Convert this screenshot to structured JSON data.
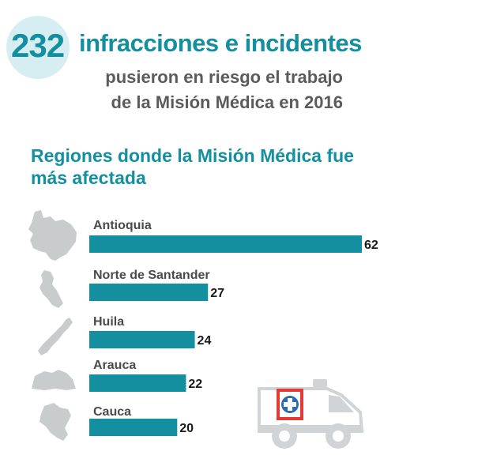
{
  "header": {
    "number": "232",
    "headline": "infracciones e incidentes",
    "subline1": "pusieron en riesgo el trabajo",
    "subline2": "de la Misión Médica en 2016"
  },
  "section_title": "Regiones donde la Misión Médica fue más afectada",
  "colors": {
    "accent": "#138fa0",
    "bar": "#138fa0",
    "map_gray": "#c9cccd",
    "badge_bg": "#d6eef2"
  },
  "chart_data": {
    "type": "bar",
    "orientation": "horizontal",
    "categories": [
      "Antioquia",
      "Norte de Santander",
      "Huila",
      "Arauca",
      "Cauca"
    ],
    "values": [
      62,
      27,
      24,
      22,
      20
    ],
    "title": "Regiones donde la Misión Médica fue más afectada",
    "xlabel": "",
    "ylabel": "",
    "xlim": [
      0,
      62
    ],
    "grid": false,
    "legend": "none",
    "data_labels": true,
    "icons": [
      "antioquia-map-icon",
      "norte-de-santander-map-icon",
      "huila-map-icon",
      "arauca-map-icon",
      "cauca-map-icon"
    ]
  },
  "illustration": "ambulance-icon"
}
